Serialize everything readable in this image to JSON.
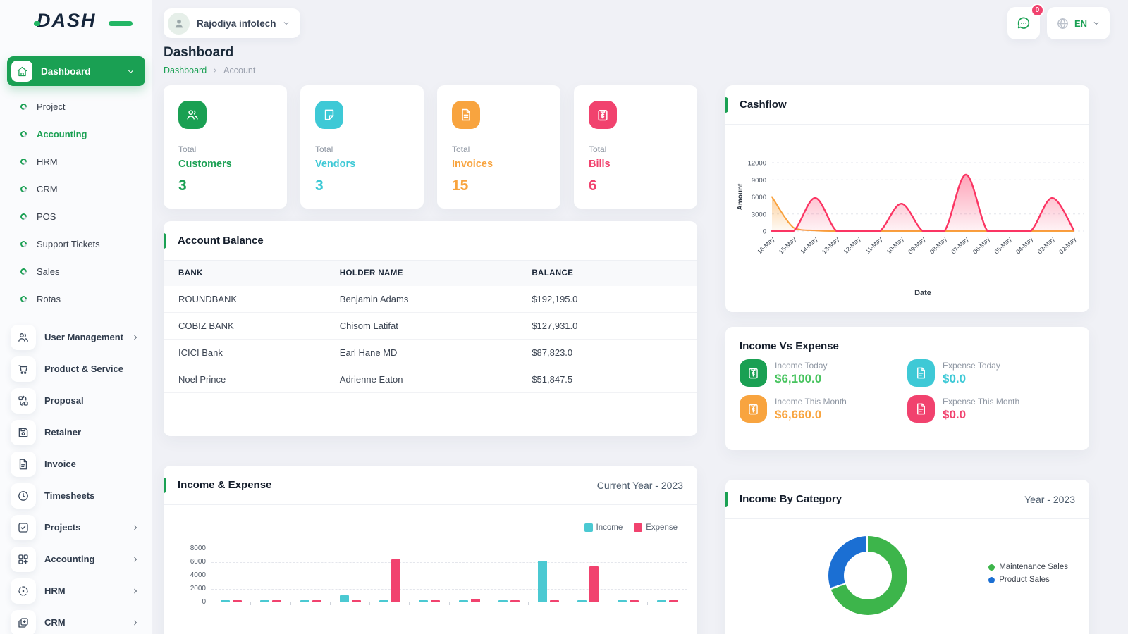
{
  "brand": {
    "name": "DASH"
  },
  "topbar": {
    "workspace": "Rajodiya infotech",
    "messages_badge": "0",
    "language": "EN"
  },
  "page": {
    "title": "Dashboard",
    "breadcrumb_link": "Dashboard",
    "breadcrumb_current": "Account"
  },
  "sidebar": {
    "active_item": {
      "label": "Dashboard",
      "icon": "home-icon"
    },
    "sub_items": [
      {
        "label": "Project",
        "active": false
      },
      {
        "label": "Accounting",
        "active": true
      },
      {
        "label": "HRM",
        "active": false
      },
      {
        "label": "CRM",
        "active": false
      },
      {
        "label": "POS",
        "active": false
      },
      {
        "label": "Support Tickets",
        "active": false
      },
      {
        "label": "Sales",
        "active": false
      },
      {
        "label": "Rotas",
        "active": false
      }
    ],
    "menu_items": [
      {
        "label": "User Management",
        "icon": "users-icon",
        "expandable": true
      },
      {
        "label": "Product & Service",
        "icon": "cart-icon",
        "expandable": false
      },
      {
        "label": "Proposal",
        "icon": "swap-icon",
        "expandable": false
      },
      {
        "label": "Retainer",
        "icon": "retainer-icon",
        "expandable": false
      },
      {
        "label": "Invoice",
        "icon": "invoice-icon",
        "expandable": false
      },
      {
        "label": "Timesheets",
        "icon": "clock-icon",
        "expandable": false
      },
      {
        "label": "Projects",
        "icon": "check-square-icon",
        "expandable": true
      },
      {
        "label": "Accounting",
        "icon": "grid-icon",
        "expandable": true
      },
      {
        "label": "HRM",
        "icon": "target-icon",
        "expandable": true
      },
      {
        "label": "CRM",
        "icon": "chat-square-icon",
        "expandable": true
      }
    ]
  },
  "stats": [
    {
      "label": "Total",
      "name": "Customers",
      "value": "3",
      "color": "#1aa053",
      "icon": "users-icon"
    },
    {
      "label": "Total",
      "name": "Vendors",
      "value": "3",
      "color": "#3ec9d6",
      "icon": "note-icon"
    },
    {
      "label": "Total",
      "name": "Invoices",
      "value": "15",
      "color": "#f8a43f",
      "icon": "file-icon"
    },
    {
      "label": "Total",
      "name": "Bills",
      "value": "6",
      "color": "#f1426e",
      "icon": "clipboard-dollar-icon"
    }
  ],
  "account_balance": {
    "title": "Account Balance",
    "columns": [
      "BANK",
      "HOLDER NAME",
      "BALANCE"
    ],
    "rows": [
      [
        "ROUNDBANK",
        "Benjamin Adams",
        "$192,195.0"
      ],
      [
        "COBIZ BANK",
        "Chisom Latifat",
        "$127,931.0"
      ],
      [
        "ICICI Bank",
        "Earl Hane MD",
        "$87,823.0"
      ],
      [
        "Noel Prince",
        "Adrienne Eaton",
        "$51,847.5"
      ]
    ]
  },
  "income_vs_expense": {
    "title": "Income Vs Expense",
    "items": [
      {
        "label": "Income Today",
        "value": "$6,100.0",
        "icon": "clipboard-dollar-icon",
        "icon_bg": "#1aa053",
        "value_color": "#48c45f"
      },
      {
        "label": "Expense Today",
        "value": "$0.0",
        "icon": "expense-file-icon",
        "icon_bg": "#3ec9d6",
        "value_color": "#3ec9d6"
      },
      {
        "label": "Income This Month",
        "value": "$6,660.0",
        "icon": "clipboard-dollar-icon",
        "icon_bg": "#f8a43f",
        "value_color": "#f8a43f"
      },
      {
        "label": "Expense This Month",
        "value": "$0.0",
        "icon": "expense-file-icon",
        "icon_bg": "#f1426e",
        "value_color": "#f1426e"
      }
    ]
  },
  "chart_data": [
    {
      "id": "cashflow",
      "type": "area",
      "title": "Cashflow",
      "xlabel": "Date",
      "ylabel": "Amount",
      "ylim": [
        0,
        12000
      ],
      "yticks": [
        0,
        3000,
        6000,
        9000,
        12000
      ],
      "x": [
        "16-May",
        "15-May",
        "14-May",
        "13-May",
        "12-May",
        "11-May",
        "10-May",
        "09-May",
        "08-May",
        "07-May",
        "06-May",
        "05-May",
        "04-May",
        "03-May",
        "02-May"
      ],
      "series": [
        {
          "name": "inflow-orange",
          "color": "#f9a13c",
          "values": [
            6000,
            600,
            100,
            0,
            0,
            0,
            0,
            0,
            0,
            0,
            0,
            0,
            0,
            0,
            0
          ]
        },
        {
          "name": "outflow-pink",
          "color": "#fb3563",
          "values": [
            0,
            0,
            5800,
            0,
            0,
            0,
            4800,
            0,
            0,
            9900,
            0,
            0,
            0,
            5800,
            200
          ]
        }
      ],
      "grid": "dashed-horizontal",
      "legend": false
    },
    {
      "id": "income_expense",
      "type": "bar",
      "title": "Income & Expense",
      "subtitle": "Current Year - 2023",
      "ylim": [
        0,
        8000
      ],
      "yticks": [
        0,
        2000,
        4000,
        6000,
        8000
      ],
      "categories": [
        "",
        "",
        "",
        "",
        "",
        "",
        "",
        "",
        "",
        "",
        "",
        ""
      ],
      "series": [
        {
          "name": "Income",
          "color": "#4bc9d2",
          "values": [
            200,
            150,
            150,
            900,
            100,
            120,
            180,
            120,
            6100,
            100,
            150,
            100
          ]
        },
        {
          "name": "Expense",
          "color": "#f1426e",
          "values": [
            120,
            150,
            150,
            150,
            6300,
            150,
            450,
            150,
            150,
            5300,
            150,
            150
          ]
        }
      ],
      "legend": "top-right",
      "grid": "dashed-horizontal"
    },
    {
      "id": "income_by_category",
      "type": "pie",
      "title": "Income By Category",
      "subtitle": "Year - 2023",
      "donut": true,
      "slices": [
        {
          "label": "Maintenance Sales",
          "color": "#3db54b",
          "percent": 70
        },
        {
          "label": "Product Sales",
          "color": "#1b6fd3",
          "percent": 30
        }
      ],
      "legend": "right"
    }
  ]
}
